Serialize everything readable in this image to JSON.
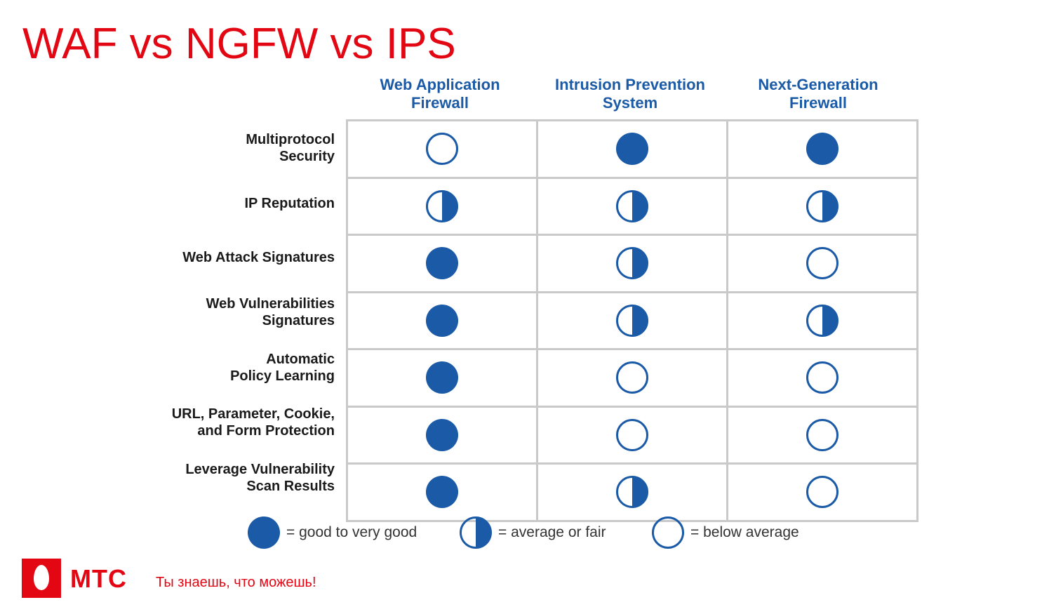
{
  "title": "WAF vs NGFW vs IPS",
  "colors": {
    "accent": "#e30613",
    "mark": "#1a5aa6",
    "grid": "#c9c9c9"
  },
  "columns": [
    "Web Application\nFirewall",
    "Intrusion Prevention\nSystem",
    "Next-Generation\nFirewall"
  ],
  "rows": [
    {
      "label": "Multiprotocol\nSecurity",
      "ratings": [
        "below",
        "good",
        "good"
      ]
    },
    {
      "label": "IP Reputation",
      "ratings": [
        "average",
        "average",
        "average"
      ]
    },
    {
      "label": "Web Attack Signatures",
      "ratings": [
        "good",
        "average",
        "below"
      ]
    },
    {
      "label": "Web Vulnerabilities\nSignatures",
      "ratings": [
        "good",
        "average",
        "average"
      ]
    },
    {
      "label": "Automatic\nPolicy Learning",
      "ratings": [
        "good",
        "below",
        "below"
      ]
    },
    {
      "label": "URL, Parameter, Cookie,\nand Form Protection",
      "ratings": [
        "good",
        "below",
        "below"
      ]
    },
    {
      "label": "Leverage Vulnerability\nScan Results",
      "ratings": [
        "good",
        "average",
        "below"
      ]
    }
  ],
  "legend": [
    {
      "rating": "good",
      "icon": "filled-circle-icon",
      "text": "= good to very good"
    },
    {
      "rating": "average",
      "icon": "half-circle-icon",
      "text": "= average or fair"
    },
    {
      "rating": "below",
      "icon": "empty-circle-icon",
      "text": "= below average"
    }
  ],
  "footer": {
    "logo_text": "МТС",
    "slogan": "Ты знаешь, что можешь!"
  }
}
